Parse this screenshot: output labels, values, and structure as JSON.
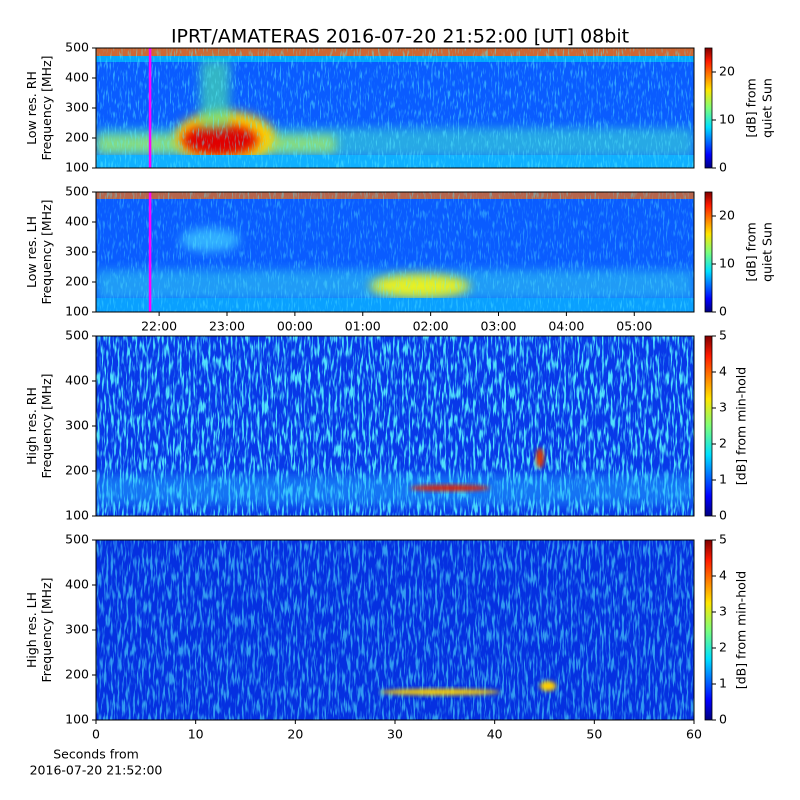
{
  "chart_data": [
    {
      "type": "heatmap",
      "title": "IPRT/AMATERAS 2016-07-20 21:52:00 [UT]   08bit",
      "ylabel": [
        "Low res. RH",
        "Frequency [MHz]"
      ],
      "ylim": [
        100,
        500
      ],
      "yticks": [
        100,
        200,
        300,
        400,
        500
      ],
      "xlim": [
        21.07,
        29.88
      ],
      "marker_x": 21.8667,
      "marker_color": "#ff00ff",
      "colormap": "jet",
      "colorbar": {
        "label": [
          "[dB] from",
          "quiet Sun"
        ],
        "lim": [
          0,
          25
        ],
        "ticks": [
          0,
          10,
          20
        ]
      }
    },
    {
      "type": "heatmap",
      "ylabel": [
        "Low res. LH",
        "Frequency [MHz]"
      ],
      "ylim": [
        100,
        500
      ],
      "yticks": [
        100,
        200,
        300,
        400,
        500
      ],
      "xlim": [
        21.07,
        29.88
      ],
      "marker_x": 21.8667,
      "marker_color": "#ff00ff",
      "colormap": "jet",
      "xticks": [
        {
          "value": 22,
          "label": "22:00"
        },
        {
          "value": 23,
          "label": "23:00"
        },
        {
          "value": 24,
          "label": "00:00"
        },
        {
          "value": 25,
          "label": "01:00"
        },
        {
          "value": 26,
          "label": "02:00"
        },
        {
          "value": 27,
          "label": "03:00"
        },
        {
          "value": 28,
          "label": "04:00"
        },
        {
          "value": 29,
          "label": "05:00"
        }
      ],
      "colorbar": {
        "label": [
          "[dB] from",
          "quiet Sun"
        ],
        "lim": [
          0,
          25
        ],
        "ticks": [
          0,
          10,
          20
        ]
      }
    },
    {
      "type": "heatmap",
      "ylabel": [
        "High res. RH",
        "Frequency [MHz]"
      ],
      "ylim": [
        100,
        500
      ],
      "yticks": [
        100,
        200,
        300,
        400,
        500
      ],
      "xlim": [
        0,
        60
      ],
      "colormap": "jet",
      "colorbar": {
        "label": [
          "[dB] from min-hold"
        ],
        "lim": [
          0,
          5
        ],
        "ticks": [
          0,
          1,
          2,
          3,
          4,
          5
        ]
      }
    },
    {
      "type": "heatmap",
      "ylabel": [
        "High res. LH",
        "Frequency [MHz]"
      ],
      "ylim": [
        100,
        500
      ],
      "yticks": [
        100,
        200,
        300,
        400,
        500
      ],
      "xlim": [
        0,
        60
      ],
      "xticks": [
        0,
        10,
        20,
        30,
        40,
        50,
        60
      ],
      "xlabel": [
        "Seconds from",
        "2016-07-20 21:52:00"
      ],
      "colormap": "jet",
      "colorbar": {
        "label": [
          "[dB] from min-hold"
        ],
        "lim": [
          0,
          5
        ],
        "ticks": [
          0,
          1,
          2,
          3,
          4,
          5
        ]
      }
    }
  ]
}
